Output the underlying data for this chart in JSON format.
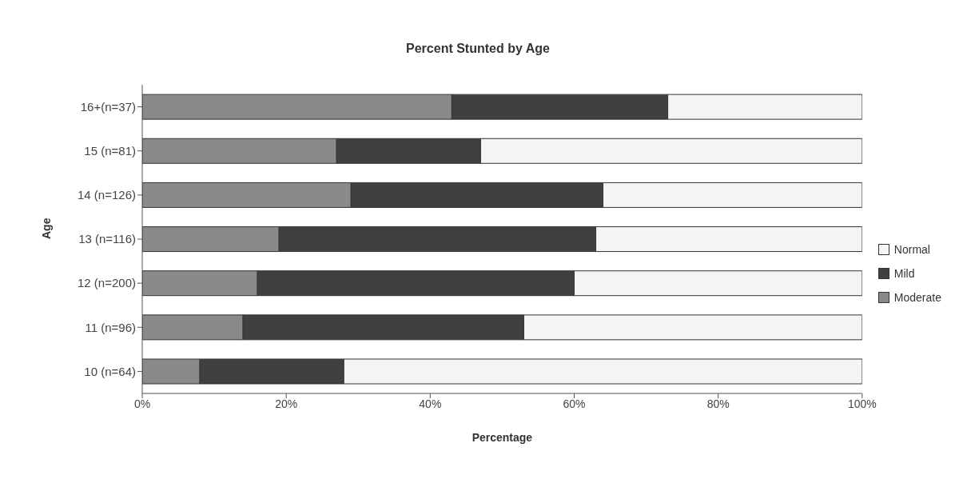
{
  "chart_data": {
    "type": "bar",
    "orientation": "horizontal",
    "stacked": true,
    "title": "Percent Stunted by Age",
    "xlabel": "Percentage",
    "ylabel": "Age",
    "categories": [
      "16+(n=37)",
      "15 (n=81)",
      "14 (n=126)",
      "13 (n=116)",
      "12 (n=200)",
      "11 (n=96)",
      "10 (n=64)"
    ],
    "series": [
      {
        "name": "Moderate",
        "color": "#8a8a8a",
        "values": [
          43,
          27,
          29,
          19,
          16,
          14,
          8
        ]
      },
      {
        "name": "Mild",
        "color": "#404040",
        "values": [
          30,
          20,
          35,
          44,
          44,
          39,
          20
        ]
      },
      {
        "name": "Normal",
        "color": "#f4f4f4",
        "values": [
          27,
          53,
          36,
          37,
          40,
          47,
          72
        ]
      }
    ],
    "xlim": [
      0,
      100
    ],
    "xticks": [
      {
        "value": 0,
        "label": "0%"
      },
      {
        "value": 20,
        "label": "20%"
      },
      {
        "value": 40,
        "label": "40%"
      },
      {
        "value": 60,
        "label": "60%"
      },
      {
        "value": 80,
        "label": "80%"
      },
      {
        "value": 100,
        "label": "100%"
      }
    ],
    "grid": false,
    "legend": "right"
  }
}
